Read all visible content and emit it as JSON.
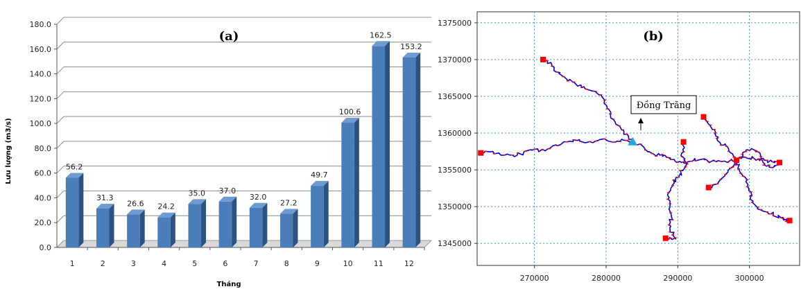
{
  "chart_data": [
    {
      "panel": "(a)",
      "type": "bar",
      "categories": [
        "1",
        "2",
        "3",
        "4",
        "5",
        "6",
        "7",
        "8",
        "9",
        "10",
        "11",
        "12"
      ],
      "values": [
        56.2,
        31.3,
        26.6,
        24.2,
        35.0,
        37.0,
        32.0,
        27.2,
        49.7,
        100.6,
        162.5,
        153.2
      ],
      "value_labels": [
        "56.2",
        "31.3",
        "26.6",
        "24.2",
        "35.0",
        "37.0",
        "32.0",
        "27.2",
        "49.7",
        "100.6",
        "162.5",
        "153.2"
      ],
      "xlabel": "Tháng",
      "ylabel": "Lưu lượng (m3/s)",
      "ylim": [
        0,
        180
      ],
      "yticks": [
        "0.0",
        "20.0",
        "40.0",
        "60.0",
        "80.0",
        "100.0",
        "120.0",
        "140.0",
        "160.0",
        "180.0"
      ],
      "grid": true,
      "bar_color": "#4a7ebb",
      "bar_side_color": "#2c5282",
      "bar_top_color": "#6f9bd1"
    },
    {
      "panel": "(b)",
      "type": "map",
      "xlim": [
        262000,
        307000
      ],
      "ylim": [
        1342000,
        1376500
      ],
      "xticks": [
        "270000",
        "280000",
        "290000",
        "300000"
      ],
      "yticks": [
        "1345000",
        "1350000",
        "1355000",
        "1360000",
        "1365000",
        "1370000",
        "1375000"
      ],
      "grid": true,
      "river_color": "#0000dd",
      "node_color": "#ff0000",
      "station": {
        "name": "Đồng Trăng",
        "x": 283700,
        "y": 1358800,
        "color": "#22aadd"
      },
      "endpoints": [
        {
          "x": 262500,
          "y": 1357300
        },
        {
          "x": 271200,
          "y": 1370000
        },
        {
          "x": 290800,
          "y": 1358800
        },
        {
          "x": 293600,
          "y": 1362200
        },
        {
          "x": 298200,
          "y": 1356300
        },
        {
          "x": 304200,
          "y": 1356000
        },
        {
          "x": 294300,
          "y": 1352600
        },
        {
          "x": 288300,
          "y": 1345700
        },
        {
          "x": 305600,
          "y": 1348100
        }
      ],
      "rivers": [
        [
          [
            262500,
            1357300
          ],
          [
            264200,
            1357500
          ],
          [
            265800,
            1357000
          ],
          [
            267200,
            1356800
          ],
          [
            268500,
            1357400
          ],
          [
            270000,
            1357800
          ],
          [
            271500,
            1357600
          ],
          [
            273000,
            1358400
          ],
          [
            274500,
            1358800
          ],
          [
            276000,
            1359000
          ],
          [
            277200,
            1358700
          ],
          [
            278500,
            1358900
          ],
          [
            280000,
            1359100
          ],
          [
            281500,
            1358900
          ],
          [
            282800,
            1359000
          ],
          [
            283700,
            1358800
          ]
        ],
        [
          [
            271200,
            1370000
          ],
          [
            272300,
            1369600
          ],
          [
            273100,
            1368300
          ],
          [
            274200,
            1367600
          ],
          [
            275400,
            1366900
          ],
          [
            276600,
            1366200
          ],
          [
            277800,
            1365800
          ],
          [
            279000,
            1365200
          ],
          [
            279800,
            1364500
          ],
          [
            280400,
            1363200
          ],
          [
            281000,
            1361900
          ],
          [
            281800,
            1361000
          ],
          [
            282500,
            1360200
          ],
          [
            283100,
            1359500
          ],
          [
            283700,
            1358800
          ]
        ],
        [
          [
            283700,
            1358800
          ],
          [
            284600,
            1358500
          ],
          [
            285500,
            1357700
          ],
          [
            286500,
            1357200
          ],
          [
            287500,
            1357000
          ],
          [
            288500,
            1356700
          ],
          [
            289500,
            1356400
          ],
          [
            290500,
            1356000
          ],
          [
            291300,
            1355800
          ],
          [
            292200,
            1356300
          ],
          [
            293200,
            1356400
          ],
          [
            294300,
            1356100
          ],
          [
            295400,
            1356100
          ],
          [
            296500,
            1356200
          ],
          [
            297500,
            1356300
          ],
          [
            298200,
            1356300
          ]
        ],
        [
          [
            290800,
            1358800
          ],
          [
            290700,
            1357800
          ],
          [
            290600,
            1356800
          ],
          [
            291300,
            1355800
          ]
        ],
        [
          [
            293600,
            1362200
          ],
          [
            294300,
            1361200
          ],
          [
            295100,
            1360500
          ],
          [
            295300,
            1359600
          ],
          [
            295900,
            1358700
          ],
          [
            296800,
            1358200
          ],
          [
            297400,
            1357300
          ],
          [
            298200,
            1356300
          ]
        ],
        [
          [
            298200,
            1356300
          ],
          [
            299200,
            1356700
          ],
          [
            300300,
            1356600
          ],
          [
            301200,
            1356500
          ],
          [
            302100,
            1356300
          ],
          [
            303200,
            1356100
          ],
          [
            304200,
            1356000
          ]
        ],
        [
          [
            298200,
            1356300
          ],
          [
            299100,
            1356900
          ],
          [
            299500,
            1357500
          ],
          [
            300300,
            1357900
          ],
          [
            301100,
            1357500
          ],
          [
            301600,
            1356800
          ],
          [
            301900,
            1356000
          ],
          [
            302400,
            1355500
          ],
          [
            303200,
            1355300
          ],
          [
            304200,
            1355800
          ],
          [
            304200,
            1356000
          ]
        ],
        [
          [
            294300,
            1352600
          ],
          [
            295100,
            1353000
          ],
          [
            296000,
            1353700
          ],
          [
            297000,
            1354700
          ],
          [
            297800,
            1355400
          ],
          [
            298200,
            1356300
          ]
        ],
        [
          [
            291300,
            1355800
          ],
          [
            290700,
            1354900
          ],
          [
            290100,
            1354000
          ],
          [
            289500,
            1353200
          ],
          [
            289000,
            1352200
          ],
          [
            288600,
            1351000
          ],
          [
            288900,
            1349900
          ],
          [
            289100,
            1348700
          ],
          [
            288800,
            1347500
          ],
          [
            289100,
            1346500
          ],
          [
            289700,
            1345600
          ],
          [
            289000,
            1345700
          ],
          [
            288300,
            1345700
          ]
        ],
        [
          [
            298200,
            1356300
          ],
          [
            298400,
            1355300
          ],
          [
            298800,
            1354500
          ],
          [
            299400,
            1354000
          ],
          [
            299800,
            1353000
          ],
          [
            300200,
            1352000
          ],
          [
            300100,
            1351000
          ],
          [
            300900,
            1350100
          ],
          [
            301600,
            1349600
          ],
          [
            302500,
            1349300
          ],
          [
            303300,
            1348900
          ],
          [
            304400,
            1348500
          ],
          [
            305000,
            1348200
          ],
          [
            305600,
            1348100
          ]
        ]
      ]
    }
  ]
}
